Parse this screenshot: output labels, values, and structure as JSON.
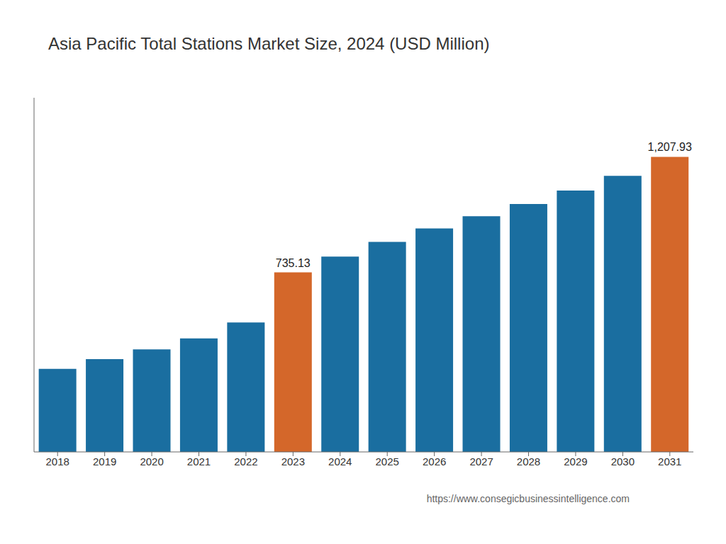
{
  "chart_data": {
    "type": "bar",
    "title": "Asia Pacific Total Stations Market Size, 2024 (USD Million)",
    "categories": [
      "2018",
      "2019",
      "2020",
      "2021",
      "2022",
      "2023",
      "2024",
      "2025",
      "2026",
      "2027",
      "2028",
      "2029",
      "2030",
      "2031"
    ],
    "values": [
      340,
      380,
      420,
      465,
      530,
      735.13,
      800,
      860,
      915,
      965,
      1015,
      1070,
      1130,
      1207.93
    ],
    "value_labels": [
      null,
      null,
      null,
      null,
      null,
      "735.13",
      null,
      null,
      null,
      null,
      null,
      null,
      null,
      "1,207.93"
    ],
    "colors": [
      "#1a6ea0",
      "#1a6ea0",
      "#1a6ea0",
      "#1a6ea0",
      "#1a6ea0",
      "#d4672a",
      "#1a6ea0",
      "#1a6ea0",
      "#1a6ea0",
      "#1a6ea0",
      "#1a6ea0",
      "#1a6ea0",
      "#1a6ea0",
      "#d4672a"
    ],
    "ylim": [
      0,
      1450
    ],
    "yticks": [],
    "tick_labels": "x",
    "grid": false,
    "annotations": [
      "https://www.consegicbusinessintelligence.com"
    ]
  }
}
